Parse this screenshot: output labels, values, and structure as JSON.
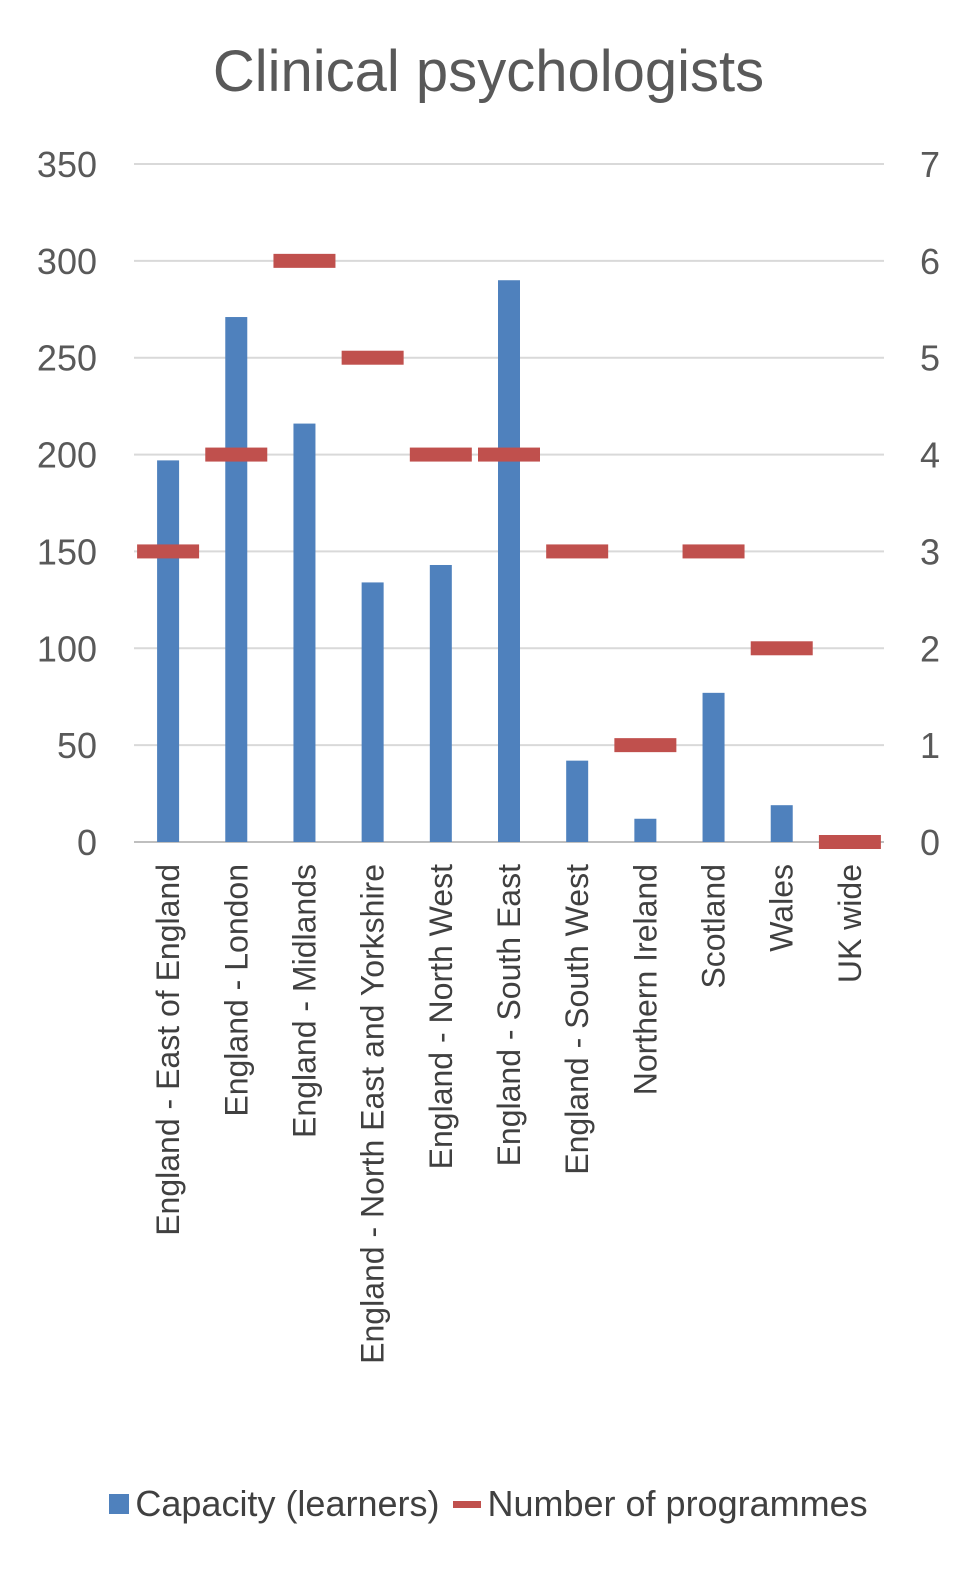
{
  "chart_data": {
    "type": "bar",
    "title": "Clinical psychologists",
    "categories": [
      "England - East of England",
      "England - London",
      "England - Midlands",
      "England - North East and Yorkshire",
      "England - North West",
      "England - South East",
      "England - South West",
      "Northern Ireland",
      "Scotland",
      "Wales",
      "UK wide"
    ],
    "series": [
      {
        "name": "Capacity (learners)",
        "kind": "bar",
        "axis": "left",
        "color": "#4f81bd",
        "values": [
          197,
          271,
          216,
          134,
          143,
          290,
          42,
          12,
          77,
          19,
          0
        ]
      },
      {
        "name": "Number of programmes",
        "kind": "marker",
        "axis": "right",
        "color": "#c0504d",
        "values": [
          3,
          4,
          6,
          5,
          4,
          4,
          3,
          1,
          3,
          2,
          0
        ]
      }
    ],
    "y_left": {
      "min": 0,
      "max": 350,
      "ticks": [
        "0",
        "50",
        "100",
        "150",
        "200",
        "250",
        "300",
        "350"
      ]
    },
    "y_right": {
      "min": 0,
      "max": 7,
      "ticks": [
        "0",
        "1",
        "2",
        "3",
        "4",
        "5",
        "6",
        "7"
      ]
    },
    "grid": true,
    "legend_position": "bottom"
  }
}
